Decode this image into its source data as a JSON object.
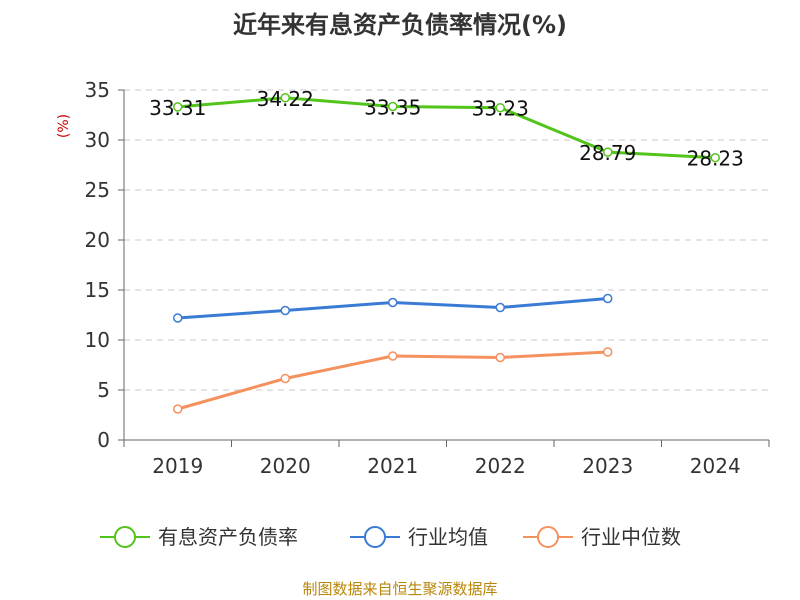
{
  "chart_data": {
    "type": "line",
    "title": "近年来有息资产负债率情况(%)",
    "ylabel": "(%)",
    "xlabel": "",
    "categories": [
      "2019",
      "2020",
      "2021",
      "2022",
      "2023",
      "2024"
    ],
    "ylim": [
      0,
      35
    ],
    "yticks": [
      0,
      5,
      10,
      15,
      20,
      25,
      30,
      35
    ],
    "grid": true,
    "legend_position": "bottom",
    "series": [
      {
        "name": "有息资产负债率",
        "color": "#52c41a",
        "values": [
          33.31,
          34.22,
          33.35,
          33.23,
          28.79,
          28.23
        ],
        "labels": [
          "33.31",
          "34.22",
          "33.35",
          "33.23",
          "28.79",
          "28.23"
        ]
      },
      {
        "name": "行业均值",
        "color": "#3a7bd5",
        "values": [
          12.2,
          12.95,
          13.75,
          13.25,
          14.15,
          null
        ]
      },
      {
        "name": "行业中位数",
        "color": "#f4915e",
        "values": [
          3.1,
          6.15,
          8.4,
          8.25,
          8.8,
          null
        ]
      }
    ],
    "source": "制图数据来自恒生聚源数据库"
  }
}
